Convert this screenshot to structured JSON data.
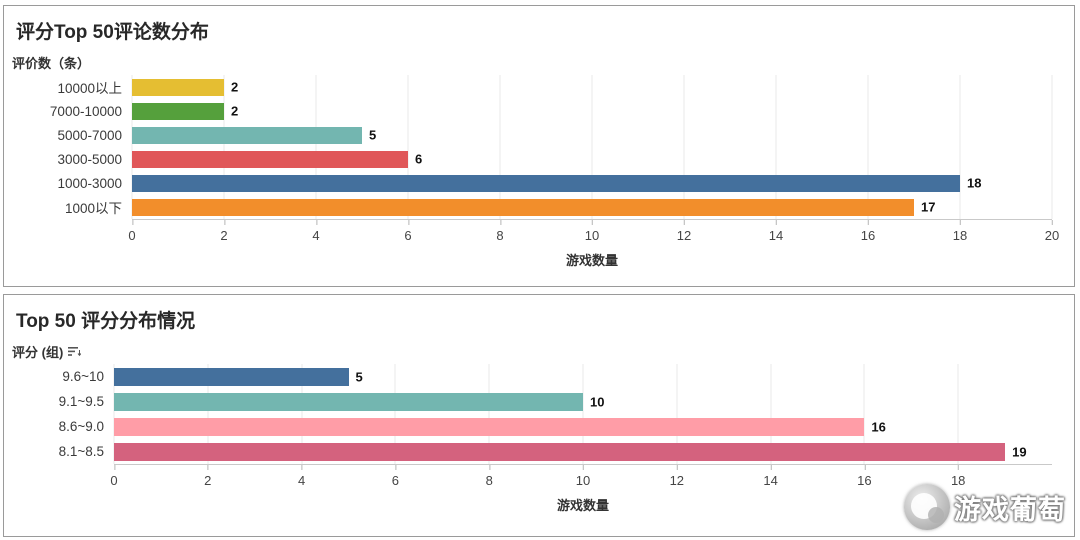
{
  "panel1": {
    "title": "评分Top 50评论数分布",
    "field_label": "评价数（条）"
  },
  "panel2": {
    "title": "Top 50 评分分布情况",
    "field_label": "评分 (组)"
  },
  "watermark": {
    "text": "游戏葡萄"
  },
  "chart_data": [
    {
      "type": "bar",
      "orientation": "horizontal",
      "title": "评分Top 50评论数分布",
      "categories": [
        "10000以上",
        "7000-10000",
        "5000-7000",
        "3000-5000",
        "1000-3000",
        "1000以下"
      ],
      "values": [
        2,
        2,
        5,
        6,
        18,
        17
      ],
      "colors": [
        "#E5BE32",
        "#55A03C",
        "#73B6B0",
        "#E05759",
        "#44709D",
        "#F28E2B"
      ],
      "xlabel": "游戏数量",
      "ylabel": "评价数（条）",
      "xlim": [
        0,
        20
      ],
      "ticks": [
        0,
        2,
        4,
        6,
        8,
        10,
        12,
        14,
        16,
        18,
        20
      ],
      "grid": true,
      "legend": "none"
    },
    {
      "type": "bar",
      "orientation": "horizontal",
      "title": "Top 50 评分分布情况",
      "categories": [
        "9.6~10",
        "9.1~9.5",
        "8.6~9.0",
        "8.1~8.5"
      ],
      "values": [
        5,
        10,
        16,
        19
      ],
      "colors": [
        "#44709D",
        "#73B6B0",
        "#FF9DA7",
        "#D4627E"
      ],
      "xlabel": "游戏数量",
      "ylabel": "评分 (组)",
      "xlim": [
        0,
        20
      ],
      "ticks": [
        0,
        2,
        4,
        6,
        8,
        10,
        12,
        14,
        16,
        18
      ],
      "grid": true,
      "legend": "none"
    }
  ]
}
